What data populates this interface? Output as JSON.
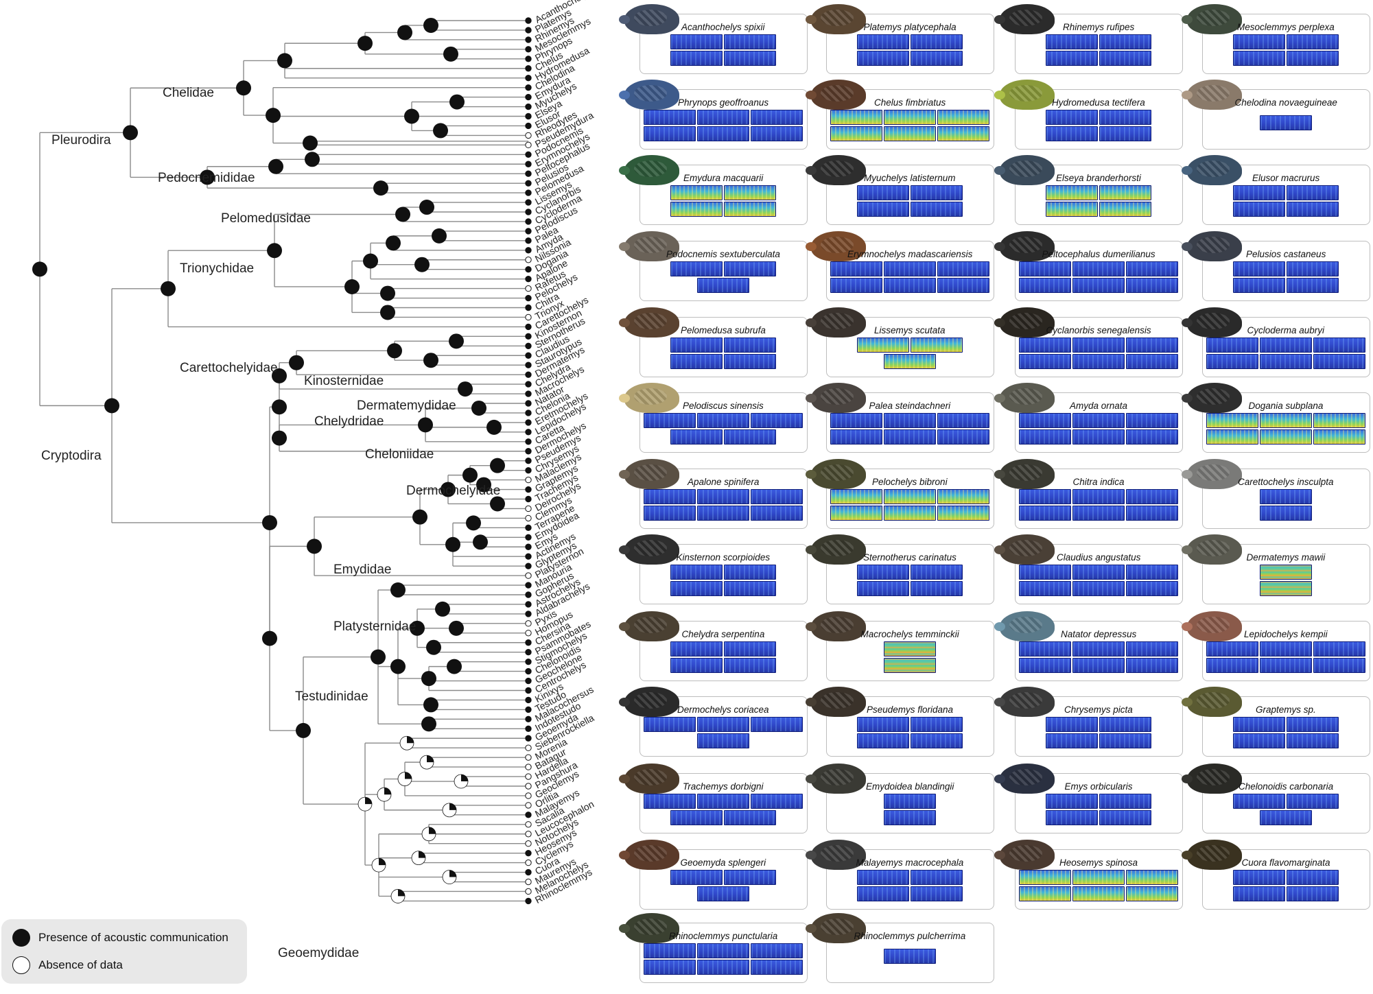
{
  "clades": [
    "Pleurodira",
    "Chelidae",
    "Pedocnemididae",
    "Pelomedusidae",
    "Trionychidae",
    "Carettochelyidae",
    "Cryptodira",
    "Kinosternidae",
    "Dermatemydidae",
    "Chelydridae",
    "Cheloniidae",
    "Dermochelyidae",
    "Emydidae",
    "Platysternidae",
    "Testudinidae",
    "Geoemydidae"
  ],
  "genera": [
    {
      "name": "Acanthochelys",
      "status": "filled"
    },
    {
      "name": "Platemys",
      "status": "filled"
    },
    {
      "name": "Rhinemys",
      "status": "filled"
    },
    {
      "name": "Mesoclemmys",
      "status": "filled"
    },
    {
      "name": "Phrynops",
      "status": "filled"
    },
    {
      "name": "Chelus",
      "status": "filled"
    },
    {
      "name": "Hydromedusa",
      "status": "filled"
    },
    {
      "name": "Chelodina",
      "status": "filled"
    },
    {
      "name": "Emydura",
      "status": "filled"
    },
    {
      "name": "Myuchelys",
      "status": "filled"
    },
    {
      "name": "Elseya",
      "status": "filled"
    },
    {
      "name": "Elusor",
      "status": "filled"
    },
    {
      "name": "Rheodytes",
      "status": "open"
    },
    {
      "name": "Pseudemydura",
      "status": "open"
    },
    {
      "name": "Podocnemis",
      "status": "filled"
    },
    {
      "name": "Erymnochelys",
      "status": "filled"
    },
    {
      "name": "Peltocephalus",
      "status": "filled"
    },
    {
      "name": "Pelusios",
      "status": "filled"
    },
    {
      "name": "Pelomedusa",
      "status": "filled"
    },
    {
      "name": "Lissemys",
      "status": "filled"
    },
    {
      "name": "Cyclanorbis",
      "status": "filled"
    },
    {
      "name": "Cycloderma",
      "status": "filled"
    },
    {
      "name": "Pelodiscus",
      "status": "filled"
    },
    {
      "name": "Palea",
      "status": "filled"
    },
    {
      "name": "Amyda",
      "status": "filled"
    },
    {
      "name": "Nilssonia",
      "status": "open"
    },
    {
      "name": "Dogania",
      "status": "filled"
    },
    {
      "name": "Apalone",
      "status": "filled"
    },
    {
      "name": "Rafetus",
      "status": "open"
    },
    {
      "name": "Pelochelys",
      "status": "filled"
    },
    {
      "name": "Chitra",
      "status": "filled"
    },
    {
      "name": "Trionyx",
      "status": "open"
    },
    {
      "name": "Carettochelys",
      "status": "filled"
    },
    {
      "name": "Kinosternon",
      "status": "filled"
    },
    {
      "name": "Sternotherus",
      "status": "filled"
    },
    {
      "name": "Claudius",
      "status": "filled"
    },
    {
      "name": "Staurotypus",
      "status": "filled"
    },
    {
      "name": "Dermatemys",
      "status": "filled"
    },
    {
      "name": "Chelydra",
      "status": "filled"
    },
    {
      "name": "Macrochelys",
      "status": "filled"
    },
    {
      "name": "Natator",
      "status": "filled"
    },
    {
      "name": "Chelonia",
      "status": "filled"
    },
    {
      "name": "Eretmochelys",
      "status": "filled"
    },
    {
      "name": "Lepidochelys",
      "status": "filled"
    },
    {
      "name": "Caretta",
      "status": "filled"
    },
    {
      "name": "Dermochelys",
      "status": "filled"
    },
    {
      "name": "Pseudemys",
      "status": "filled"
    },
    {
      "name": "Chrysemys",
      "status": "filled"
    },
    {
      "name": "Malaclemys",
      "status": "open"
    },
    {
      "name": "Graptemys",
      "status": "filled"
    },
    {
      "name": "Trachemys",
      "status": "filled"
    },
    {
      "name": "Deirochelys",
      "status": "open"
    },
    {
      "name": "Clemmys",
      "status": "open"
    },
    {
      "name": "Terrapene",
      "status": "filled"
    },
    {
      "name": "Emydoidea",
      "status": "filled"
    },
    {
      "name": "Emys",
      "status": "filled"
    },
    {
      "name": "Actinemys",
      "status": "filled"
    },
    {
      "name": "Glyptemys",
      "status": "filled"
    },
    {
      "name": "Platysternon",
      "status": "open"
    },
    {
      "name": "Manouria",
      "status": "filled"
    },
    {
      "name": "Gopherus",
      "status": "filled"
    },
    {
      "name": "Astrochelys",
      "status": "filled"
    },
    {
      "name": "Aldabrachelys",
      "status": "filled"
    },
    {
      "name": "Pyxis",
      "status": "open"
    },
    {
      "name": "Homopus",
      "status": "open"
    },
    {
      "name": "Chersina",
      "status": "filled"
    },
    {
      "name": "Psammobates",
      "status": "filled"
    },
    {
      "name": "Stigmochelys",
      "status": "filled"
    },
    {
      "name": "Chelonoidis",
      "status": "filled"
    },
    {
      "name": "Geochelone",
      "status": "filled"
    },
    {
      "name": "Centrochelys",
      "status": "filled"
    },
    {
      "name": "Kinixys",
      "status": "filled"
    },
    {
      "name": "Testudo",
      "status": "filled"
    },
    {
      "name": "Malacochersus",
      "status": "filled"
    },
    {
      "name": "Indotestudo",
      "status": "filled"
    },
    {
      "name": "Geoemyda",
      "status": "filled"
    },
    {
      "name": "Siebenrockiella",
      "status": "open"
    },
    {
      "name": "Morenia",
      "status": "open"
    },
    {
      "name": "Batagur",
      "status": "open"
    },
    {
      "name": "Hardella",
      "status": "open"
    },
    {
      "name": "Pangshura",
      "status": "open"
    },
    {
      "name": "Geoclemys",
      "status": "open"
    },
    {
      "name": "Orlitia",
      "status": "open"
    },
    {
      "name": "Malayemys",
      "status": "filled"
    },
    {
      "name": "Sacalia",
      "status": "open"
    },
    {
      "name": "Leucocephalon",
      "status": "open"
    },
    {
      "name": "Notochelys",
      "status": "open"
    },
    {
      "name": "Heosemys",
      "status": "filled"
    },
    {
      "name": "Cyclemys",
      "status": "open"
    },
    {
      "name": "Cuora",
      "status": "filled"
    },
    {
      "name": "Mauremys",
      "status": "open"
    },
    {
      "name": "Melanochelys",
      "status": "open"
    },
    {
      "name": "Rhinoclemmys",
      "status": "filled"
    }
  ],
  "legend": {
    "presence": "Presence of acoustic communication",
    "absence": "Absence of data"
  },
  "colors": {
    "branch": "#8a8a8a",
    "node": "#111111",
    "panel_border": "#bdbdbd",
    "spectrogram": "#2f47c8"
  },
  "species": [
    {
      "name": "Acanthochelys spixii",
      "photo": "#3f4a5e",
      "specs": [
        2,
        2
      ]
    },
    {
      "name": "Platemys platycephala",
      "photo": "#5a4632",
      "specs": [
        2,
        2
      ]
    },
    {
      "name": "Rhinemys rufipes",
      "photo": "#2b2b2b",
      "specs": [
        2,
        2
      ]
    },
    {
      "name": "Mesoclemmys perplexa",
      "photo": "#3e4a3c",
      "specs": [
        2,
        2
      ]
    },
    {
      "name": "Phrynops geoffroanus",
      "photo": "#3d5a8a",
      "specs": [
        3,
        3
      ]
    },
    {
      "name": "Chelus fimbriatus",
      "photo": "#5a3b2a",
      "specs": [
        3,
        3
      ],
      "style": "hot"
    },
    {
      "name": "Hydromedusa tectifera",
      "photo": "#8a9a3a",
      "specs": [
        2,
        2
      ]
    },
    {
      "name": "Chelodina novaeguineae",
      "photo": "#8a7a6a",
      "specs": [
        1
      ]
    },
    {
      "name": "Emydura macquarii",
      "photo": "#2e5a3a",
      "specs": [
        2,
        2
      ],
      "style": "hot"
    },
    {
      "name": "Myuchelys latisternum",
      "photo": "#2e2e2e",
      "specs": [
        2,
        2
      ]
    },
    {
      "name": "Elseya branderhorsti",
      "photo": "#3a4a5a",
      "specs": [
        2,
        2
      ],
      "style": "hot"
    },
    {
      "name": "Elusor macrurus",
      "photo": "#3a5066",
      "specs": [
        2,
        2
      ]
    },
    {
      "name": "Podocnemis sextuberculata",
      "photo": "#6a6258",
      "specs": [
        2,
        1
      ]
    },
    {
      "name": "Erymnochelys madascariensis",
      "photo": "#7a4a2a",
      "specs": [
        3,
        3
      ]
    },
    {
      "name": "Peltocephalus dumerilianus",
      "photo": "#2b2b2b",
      "specs": [
        3,
        3
      ]
    },
    {
      "name": "Pelusios castaneus",
      "photo": "#3a3f4a",
      "specs": [
        2,
        2
      ]
    },
    {
      "name": "Pelomedusa subrufa",
      "photo": "#5a4230",
      "specs": [
        2,
        2
      ]
    },
    {
      "name": "Lissemys scutata",
      "photo": "#3a332e",
      "specs": [
        2,
        1
      ],
      "style": "hot"
    },
    {
      "name": "Cyclanorbis senegalensis",
      "photo": "#2a2620",
      "specs": [
        3,
        3
      ]
    },
    {
      "name": "Cycloderma aubryi",
      "photo": "#2a2a2a",
      "specs": [
        3,
        3
      ]
    },
    {
      "name": "Pelodiscus sinensis",
      "photo": "#b0a070",
      "specs": [
        3,
        2
      ]
    },
    {
      "name": "Palea steindachneri",
      "photo": "#4a4440",
      "specs": [
        3,
        3
      ]
    },
    {
      "name": "Amyda ornata",
      "photo": "#5a5a50",
      "specs": [
        3,
        3
      ]
    },
    {
      "name": "Dogania subplana",
      "photo": "#2e2e2e",
      "specs": [
        3,
        3
      ],
      "style": "hot"
    },
    {
      "name": "Apalone spinifera",
      "photo": "#5a5044",
      "specs": [
        3,
        3
      ]
    },
    {
      "name": "Pelochelys bibroni",
      "photo": "#4a4a30",
      "specs": [
        3,
        3
      ],
      "style": "hot"
    },
    {
      "name": "Chitra indica",
      "photo": "#3a3a32",
      "specs": [
        3,
        3
      ]
    },
    {
      "name": "Carettochelys insculpta",
      "photo": "#7a7a78",
      "specs": [
        1,
        1
      ]
    },
    {
      "name": "Kinsternon scorpioides",
      "photo": "#2e2e2e",
      "specs": [
        2,
        2
      ]
    },
    {
      "name": "Sternotherus carinatus",
      "photo": "#3a3a2e",
      "specs": [
        2,
        2
      ]
    },
    {
      "name": "Claudius angustatus",
      "photo": "#4a4036",
      "specs": [
        3,
        3
      ]
    },
    {
      "name": "Dermatemys mawii",
      "photo": "#5a5a50",
      "specs": [
        1,
        1
      ],
      "style": "warm"
    },
    {
      "name": "Chelydra serpentina",
      "photo": "#4a4032",
      "specs": [
        2,
        2
      ]
    },
    {
      "name": "Macrochelys temminckii",
      "photo": "#4a3e32",
      "specs": [
        1,
        1
      ],
      "style": "warm"
    },
    {
      "name": "Natator depressus",
      "photo": "#5a7a8a",
      "specs": [
        3,
        3
      ]
    },
    {
      "name": "Lepidochelys kempii",
      "photo": "#8a5a4a",
      "specs": [
        3,
        3
      ]
    },
    {
      "name": "Dermochelys coriacea",
      "photo": "#2a2a2a",
      "specs": [
        3,
        1
      ]
    },
    {
      "name": "Pseudemys floridana",
      "photo": "#3a322a",
      "specs": [
        2,
        2
      ]
    },
    {
      "name": "Chrysemys picta",
      "photo": "#3a3a3a",
      "specs": [
        2,
        2
      ]
    },
    {
      "name": "Graptemys sp.",
      "photo": "#5a5a32",
      "specs": [
        2,
        2
      ]
    },
    {
      "name": "Trachemys dorbigni",
      "photo": "#4a3a2a",
      "specs": [
        3,
        2
      ]
    },
    {
      "name": "Emydoidea blandingii",
      "photo": "#3a3a34",
      "specs": [
        1,
        1
      ]
    },
    {
      "name": "Emys orbicularis",
      "photo": "#2a3040",
      "specs": [
        2,
        2
      ]
    },
    {
      "name": "Chelonoidis carbonaria",
      "photo": "#2a2a26",
      "specs": [
        2,
        1
      ]
    },
    {
      "name": "Geoemyda splengeri",
      "photo": "#5a3a2a",
      "specs": [
        2,
        1
      ]
    },
    {
      "name": "Malayemys macrocephala",
      "photo": "#3a3a3a",
      "specs": [
        2,
        2
      ]
    },
    {
      "name": "Heosemys spinosa",
      "photo": "#4a3a30",
      "specs": [
        3,
        3
      ],
      "style": "hot"
    },
    {
      "name": "Cuora flavomarginata",
      "photo": "#3a3220",
      "specs": [
        2,
        2
      ]
    },
    {
      "name": "Rhinoclemmys punctularia",
      "photo": "#3a4030",
      "specs": [
        3,
        3
      ]
    },
    {
      "name": "Rhinoclemmys pulcherrima",
      "photo": "#4a4032",
      "specs": [
        1
      ]
    }
  ]
}
